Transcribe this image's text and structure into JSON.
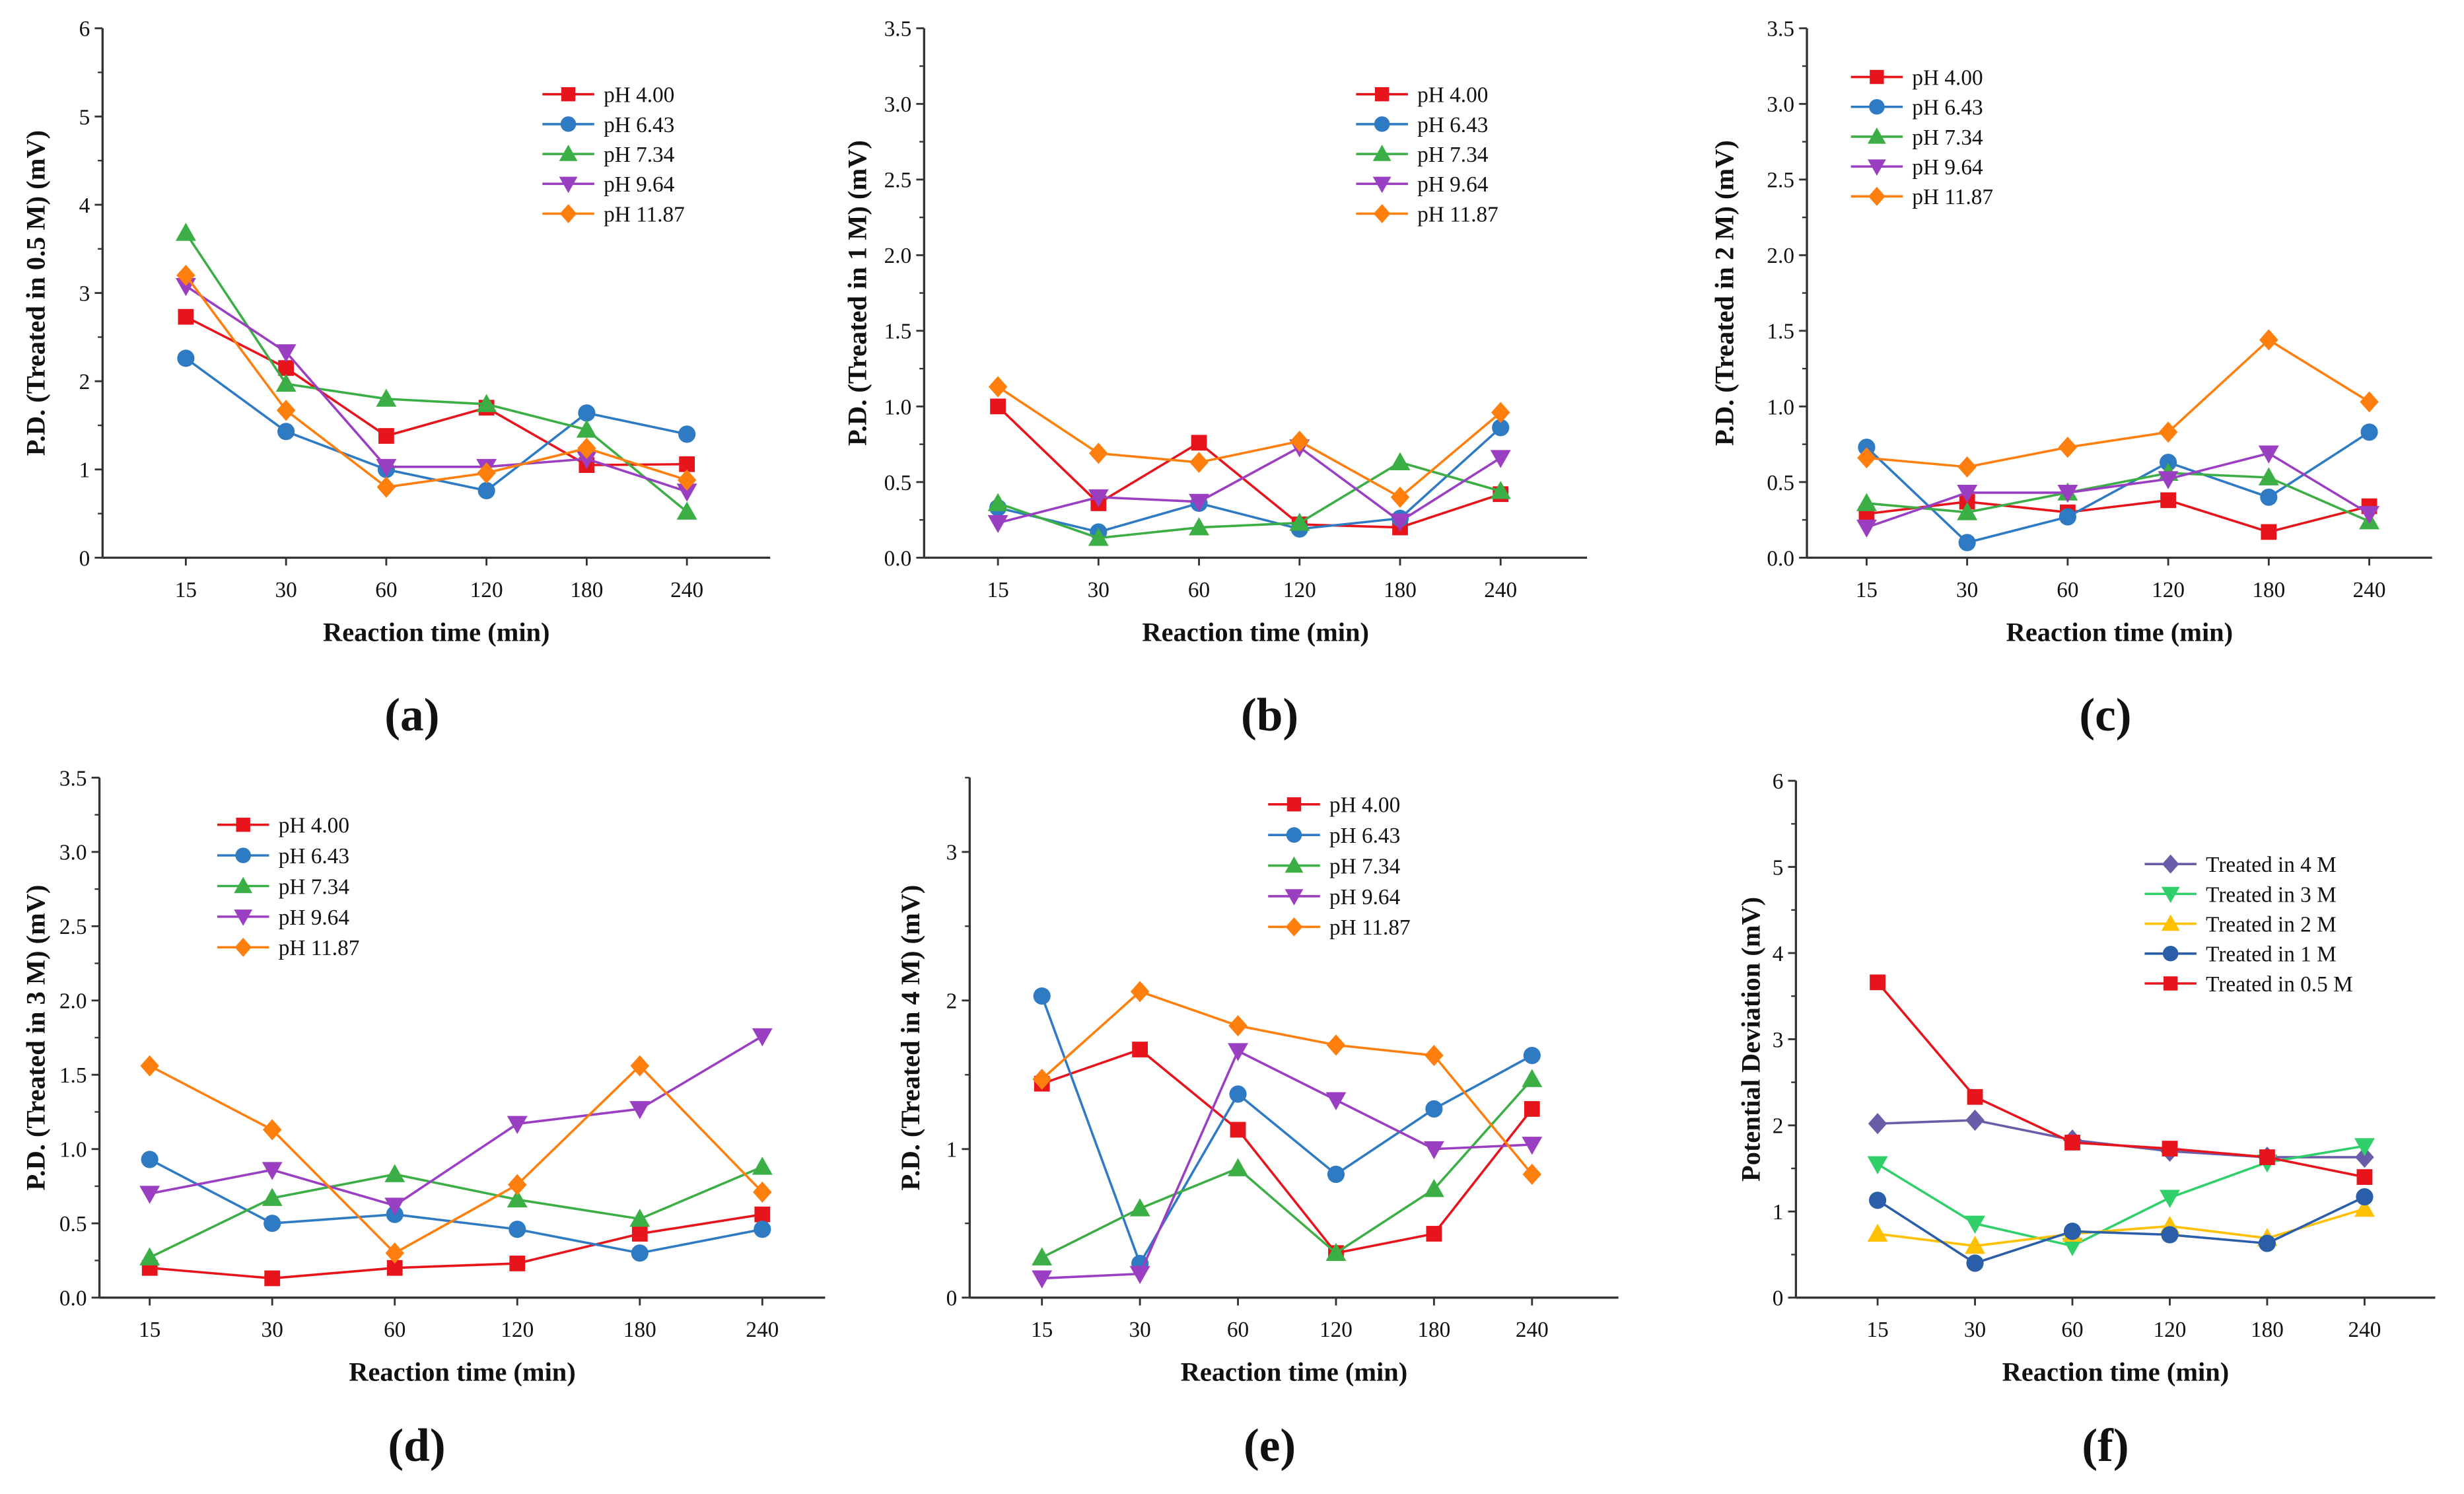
{
  "chart_data": [
    {
      "type": "line",
      "panel_label": "(a)",
      "xlabel": "Reaction time (min)",
      "ylabel": "P.D. (Treated in 0.5 M) (mV)",
      "categories": [
        "15",
        "30",
        "60",
        "120",
        "180",
        "240"
      ],
      "ylim": [
        0,
        6
      ],
      "yticks": [
        "0",
        "1",
        "2",
        "3",
        "4",
        "5",
        "6"
      ],
      "legend": "top-right",
      "series": [
        {
          "name": "pH 4.00",
          "marker": "square",
          "color": "#e8141c",
          "values": [
            2.73,
            2.15,
            1.38,
            1.7,
            1.05,
            1.06
          ]
        },
        {
          "name": "pH 6.43",
          "marker": "circle",
          "color": "#2e7bc4",
          "values": [
            2.26,
            1.43,
            1.0,
            0.76,
            1.64,
            1.4
          ]
        },
        {
          "name": "pH 7.34",
          "marker": "triangle-up",
          "color": "#3cae46",
          "values": [
            3.68,
            1.97,
            1.8,
            1.74,
            1.45,
            0.52
          ]
        },
        {
          "name": "pH 9.64",
          "marker": "triangle-down",
          "color": "#9b3fc2",
          "values": [
            3.08,
            2.33,
            1.03,
            1.03,
            1.12,
            0.75
          ]
        },
        {
          "name": "pH 11.87",
          "marker": "diamond",
          "color": "#ff7f0e",
          "values": [
            3.2,
            1.67,
            0.8,
            0.96,
            1.24,
            0.88
          ]
        }
      ]
    },
    {
      "type": "line",
      "panel_label": "(b)",
      "xlabel": "Reaction time (min)",
      "ylabel": "P.D. (Treated in 1 M) (mV)",
      "categories": [
        "15",
        "30",
        "60",
        "120",
        "180",
        "240"
      ],
      "ylim": [
        0,
        3.5
      ],
      "yticks": [
        "0.0",
        "0.5",
        "1.0",
        "1.5",
        "2.0",
        "2.5",
        "3.0",
        "3.5"
      ],
      "legend": "top-right",
      "series": [
        {
          "name": "pH 4.00",
          "marker": "square",
          "color": "#e8141c",
          "values": [
            1.0,
            0.36,
            0.76,
            0.22,
            0.2,
            0.42
          ]
        },
        {
          "name": "pH 6.43",
          "marker": "circle",
          "color": "#2e7bc4",
          "values": [
            0.33,
            0.17,
            0.36,
            0.19,
            0.26,
            0.86
          ]
        },
        {
          "name": "pH 7.34",
          "marker": "triangle-up",
          "color": "#3cae46",
          "values": [
            0.36,
            0.13,
            0.2,
            0.23,
            0.63,
            0.44
          ]
        },
        {
          "name": "pH 9.64",
          "marker": "triangle-down",
          "color": "#9b3fc2",
          "values": [
            0.23,
            0.4,
            0.37,
            0.73,
            0.24,
            0.66
          ]
        },
        {
          "name": "pH 11.87",
          "marker": "diamond",
          "color": "#ff7f0e",
          "values": [
            1.13,
            0.69,
            0.63,
            0.77,
            0.4,
            0.96
          ]
        }
      ]
    },
    {
      "type": "line",
      "panel_label": "(c)",
      "xlabel": "Reaction time (min)",
      "ylabel": "P.D. (Treated in 2 M) (mV)",
      "categories": [
        "15",
        "30",
        "60",
        "120",
        "180",
        "240"
      ],
      "ylim": [
        0,
        3.5
      ],
      "yticks": [
        "0.0",
        "0.5",
        "1.0",
        "1.5",
        "2.0",
        "2.5",
        "3.0",
        "3.5"
      ],
      "legend": "top-left",
      "series": [
        {
          "name": "pH 4.00",
          "marker": "square",
          "color": "#e8141c",
          "values": [
            0.29,
            0.37,
            0.3,
            0.38,
            0.17,
            0.34
          ]
        },
        {
          "name": "pH 6.43",
          "marker": "circle",
          "color": "#2e7bc4",
          "values": [
            0.73,
            0.1,
            0.27,
            0.63,
            0.4,
            0.83
          ]
        },
        {
          "name": "pH 7.34",
          "marker": "triangle-up",
          "color": "#3cae46",
          "values": [
            0.36,
            0.3,
            0.43,
            0.56,
            0.53,
            0.24
          ]
        },
        {
          "name": "pH 9.64",
          "marker": "triangle-down",
          "color": "#9b3fc2",
          "values": [
            0.2,
            0.43,
            0.43,
            0.52,
            0.69,
            0.29
          ]
        },
        {
          "name": "pH 11.87",
          "marker": "diamond",
          "color": "#ff7f0e",
          "values": [
            0.66,
            0.6,
            0.73,
            0.83,
            1.44,
            1.03
          ]
        }
      ]
    },
    {
      "type": "line",
      "panel_label": "(d)",
      "xlabel": "Reaction time (min)",
      "ylabel": "P.D. (Treated in 3 M) (mV)",
      "categories": [
        "15",
        "30",
        "60",
        "120",
        "180",
        "240"
      ],
      "ylim": [
        0,
        3.5
      ],
      "yticks": [
        "0.0",
        "0.5",
        "1.0",
        "1.5",
        "2.0",
        "2.5",
        "3.0",
        "3.5"
      ],
      "legend": "top-left",
      "series": [
        {
          "name": "pH 4.00",
          "marker": "square",
          "color": "#e8141c",
          "values": [
            0.2,
            0.13,
            0.2,
            0.23,
            0.43,
            0.56
          ]
        },
        {
          "name": "pH 6.43",
          "marker": "circle",
          "color": "#2e7bc4",
          "values": [
            0.93,
            0.5,
            0.56,
            0.46,
            0.3,
            0.46
          ]
        },
        {
          "name": "pH 7.34",
          "marker": "triangle-up",
          "color": "#3cae46",
          "values": [
            0.27,
            0.67,
            0.83,
            0.66,
            0.53,
            0.88
          ]
        },
        {
          "name": "pH 9.64",
          "marker": "triangle-down",
          "color": "#9b3fc2",
          "values": [
            0.7,
            0.86,
            0.62,
            1.17,
            1.27,
            1.76
          ]
        },
        {
          "name": "pH 11.87",
          "marker": "diamond",
          "color": "#ff7f0e",
          "values": [
            1.56,
            1.13,
            0.3,
            0.76,
            1.56,
            0.71
          ]
        }
      ]
    },
    {
      "type": "line",
      "panel_label": "(e)",
      "xlabel": "Reaction time (min)",
      "ylabel": "P.D. (Treated in 4 M) (mV)",
      "categories": [
        "15",
        "30",
        "60",
        "120",
        "180",
        "240"
      ],
      "ylim": [
        0,
        3.5
      ],
      "yticks": [
        "0",
        "1",
        "2",
        "3"
      ],
      "legend": "top-right",
      "series": [
        {
          "name": "pH 4.00",
          "marker": "square",
          "color": "#e8141c",
          "values": [
            1.44,
            1.67,
            1.13,
            0.3,
            0.43,
            1.27
          ]
        },
        {
          "name": "pH 6.43",
          "marker": "circle",
          "color": "#2e7bc4",
          "values": [
            2.03,
            0.23,
            1.37,
            0.83,
            1.27,
            1.63
          ]
        },
        {
          "name": "pH 7.34",
          "marker": "triangle-up",
          "color": "#3cae46",
          "values": [
            0.27,
            0.6,
            0.87,
            0.3,
            0.73,
            1.47
          ]
        },
        {
          "name": "pH 9.64",
          "marker": "triangle-down",
          "color": "#9b3fc2",
          "values": [
            0.13,
            0.16,
            1.66,
            1.33,
            1.0,
            1.03
          ]
        },
        {
          "name": "pH 11.87",
          "marker": "diamond",
          "color": "#ff7f0e",
          "values": [
            1.47,
            2.06,
            1.83,
            1.7,
            1.63,
            0.83
          ]
        }
      ]
    },
    {
      "type": "line",
      "panel_label": "(f)",
      "xlabel": "Reaction time (min)",
      "ylabel": "Potential Deviation (mV)",
      "categories": [
        "15",
        "30",
        "60",
        "120",
        "180",
        "240"
      ],
      "ylim": [
        0,
        6
      ],
      "yticks": [
        "0",
        "1",
        "2",
        "3",
        "4",
        "5",
        "6"
      ],
      "legend": "top-right",
      "series": [
        {
          "name": "Treated in 4 M",
          "marker": "diamond",
          "color": "#6a5ca8",
          "values": [
            2.02,
            2.06,
            1.83,
            1.7,
            1.63,
            1.63
          ]
        },
        {
          "name": "Treated in 3 M",
          "marker": "triangle-down",
          "color": "#2fcf6a",
          "values": [
            1.55,
            0.86,
            0.6,
            1.16,
            1.57,
            1.76
          ]
        },
        {
          "name": "Treated in 2 M",
          "marker": "triangle-up",
          "color": "#ffc000",
          "values": [
            0.74,
            0.6,
            0.74,
            0.83,
            0.69,
            1.03
          ]
        },
        {
          "name": "Treated in 1 M",
          "marker": "circle",
          "color": "#2a5ea8",
          "values": [
            1.13,
            0.4,
            0.77,
            0.73,
            0.63,
            1.17
          ]
        },
        {
          "name": "Treated in 0.5 M",
          "marker": "square",
          "color": "#e8141c",
          "values": [
            3.66,
            2.33,
            1.8,
            1.73,
            1.63,
            1.4
          ]
        }
      ]
    }
  ]
}
